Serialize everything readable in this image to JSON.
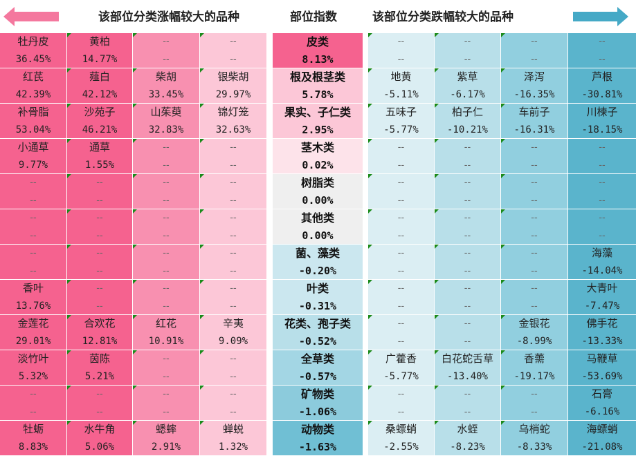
{
  "header": {
    "left_title": "该部位分类涨幅较大的品种",
    "mid_title": "部位指数",
    "right_title": "该部位分类跌幅较大的品种"
  },
  "colors": {
    "rise_dark": "#f5628f",
    "rise_medium": "#f890b0",
    "rise_light": "#fcc7d7",
    "fall_light": "#dbeef3",
    "fall_mid": "#b8dfe9",
    "fall_mid2": "#91cfdf",
    "fall_dark": "#5ab4cc",
    "arrow_left": "#f4789e",
    "arrow_right": "#45a9c6"
  },
  "rows": [
    {
      "category": "皮类",
      "index": "8.13%",
      "rise": [
        [
          "牡丹皮",
          "36.45%"
        ],
        [
          "黄柏",
          "14.77%"
        ],
        [
          "--",
          "--"
        ],
        [
          "--",
          "--"
        ]
      ],
      "fall": [
        [
          "--",
          "--"
        ],
        [
          "--",
          "--"
        ],
        [
          "--",
          "--"
        ],
        [
          "--",
          "--"
        ]
      ]
    },
    {
      "category": "根及根茎类",
      "index": "5.78%",
      "rise": [
        [
          "红芪",
          "42.39%"
        ],
        [
          "薤白",
          "42.12%"
        ],
        [
          "柴胡",
          "33.45%"
        ],
        [
          "银柴胡",
          "29.97%"
        ]
      ],
      "fall": [
        [
          "地黄",
          "-5.11%"
        ],
        [
          "紫草",
          "-6.17%"
        ],
        [
          "泽泻",
          "-16.35%"
        ],
        [
          "芦根",
          "-30.81%"
        ]
      ]
    },
    {
      "category": "果实、子仁类",
      "index": "2.95%",
      "rise": [
        [
          "补骨脂",
          "53.04%"
        ],
        [
          "沙苑子",
          "46.21%"
        ],
        [
          "山茱萸",
          "32.83%"
        ],
        [
          "锦灯笼",
          "32.63%"
        ]
      ],
      "fall": [
        [
          "五味子",
          "-5.77%"
        ],
        [
          "柏子仁",
          "-10.21%"
        ],
        [
          "车前子",
          "-16.31%"
        ],
        [
          "川楝子",
          "-18.15%"
        ]
      ]
    },
    {
      "category": "茎木类",
      "index": "0.02%",
      "rise": [
        [
          "小通草",
          "9.77%"
        ],
        [
          "通草",
          "1.55%"
        ],
        [
          "--",
          "--"
        ],
        [
          "--",
          "--"
        ]
      ],
      "fall": [
        [
          "--",
          "--"
        ],
        [
          "--",
          "--"
        ],
        [
          "--",
          "--"
        ],
        [
          "--",
          "--"
        ]
      ]
    },
    {
      "category": "树脂类",
      "index": "0.00%",
      "rise": [
        [
          "--",
          "--"
        ],
        [
          "--",
          "--"
        ],
        [
          "--",
          "--"
        ],
        [
          "--",
          "--"
        ]
      ],
      "fall": [
        [
          "--",
          "--"
        ],
        [
          "--",
          "--"
        ],
        [
          "--",
          "--"
        ],
        [
          "--",
          "--"
        ]
      ]
    },
    {
      "category": "其他类",
      "index": "0.00%",
      "rise": [
        [
          "--",
          "--"
        ],
        [
          "--",
          "--"
        ],
        [
          "--",
          "--"
        ],
        [
          "--",
          "--"
        ]
      ],
      "fall": [
        [
          "--",
          "--"
        ],
        [
          "--",
          "--"
        ],
        [
          "--",
          "--"
        ],
        [
          "--",
          "--"
        ]
      ]
    },
    {
      "category": "菌、藻类",
      "index": "-0.20%",
      "rise": [
        [
          "--",
          "--"
        ],
        [
          "--",
          "--"
        ],
        [
          "--",
          "--"
        ],
        [
          "--",
          "--"
        ]
      ],
      "fall": [
        [
          "--",
          "--"
        ],
        [
          "--",
          "--"
        ],
        [
          "--",
          "--"
        ],
        [
          "海藻",
          "-14.04%"
        ]
      ]
    },
    {
      "category": "叶类",
      "index": "-0.31%",
      "rise": [
        [
          "香叶",
          "13.76%"
        ],
        [
          "--",
          "--"
        ],
        [
          "--",
          "--"
        ],
        [
          "--",
          "--"
        ]
      ],
      "fall": [
        [
          "--",
          "--"
        ],
        [
          "--",
          "--"
        ],
        [
          "--",
          "--"
        ],
        [
          "大青叶",
          "-7.47%"
        ]
      ]
    },
    {
      "category": "花类、孢子类",
      "index": "-0.52%",
      "rise": [
        [
          "金莲花",
          "29.01%"
        ],
        [
          "合欢花",
          "12.81%"
        ],
        [
          "红花",
          "10.91%"
        ],
        [
          "辛夷",
          "9.09%"
        ]
      ],
      "fall": [
        [
          "--",
          "--"
        ],
        [
          "--",
          "--"
        ],
        [
          "金银花",
          "-8.99%"
        ],
        [
          "佛手花",
          "-13.33%"
        ]
      ]
    },
    {
      "category": "全草类",
      "index": "-0.57%",
      "rise": [
        [
          "淡竹叶",
          "5.32%"
        ],
        [
          "茵陈",
          "5.21%"
        ],
        [
          "--",
          "--"
        ],
        [
          "--",
          "--"
        ]
      ],
      "fall": [
        [
          "广藿香",
          "-5.77%"
        ],
        [
          "白花蛇舌草",
          "-13.40%"
        ],
        [
          "香薷",
          "-19.17%"
        ],
        [
          "马鞭草",
          "-53.69%"
        ]
      ]
    },
    {
      "category": "矿物类",
      "index": "-1.06%",
      "rise": [
        [
          "--",
          "--"
        ],
        [
          "--",
          "--"
        ],
        [
          "--",
          "--"
        ],
        [
          "--",
          "--"
        ]
      ],
      "fall": [
        [
          "--",
          "--"
        ],
        [
          "--",
          "--"
        ],
        [
          "--",
          "--"
        ],
        [
          "石膏",
          "-6.16%"
        ]
      ]
    },
    {
      "category": "动物类",
      "index": "-1.63%",
      "rise": [
        [
          "牡蛎",
          "8.83%"
        ],
        [
          "水牛角",
          "5.06%"
        ],
        [
          "蟋蟀",
          "2.91%"
        ],
        [
          "蝉蜕",
          "1.32%"
        ]
      ],
      "fall": [
        [
          "桑螵蛸",
          "-2.55%"
        ],
        [
          "水蛭",
          "-8.23%"
        ],
        [
          "乌梢蛇",
          "-8.33%"
        ],
        [
          "海螵蛸",
          "-21.08%"
        ]
      ]
    }
  ]
}
